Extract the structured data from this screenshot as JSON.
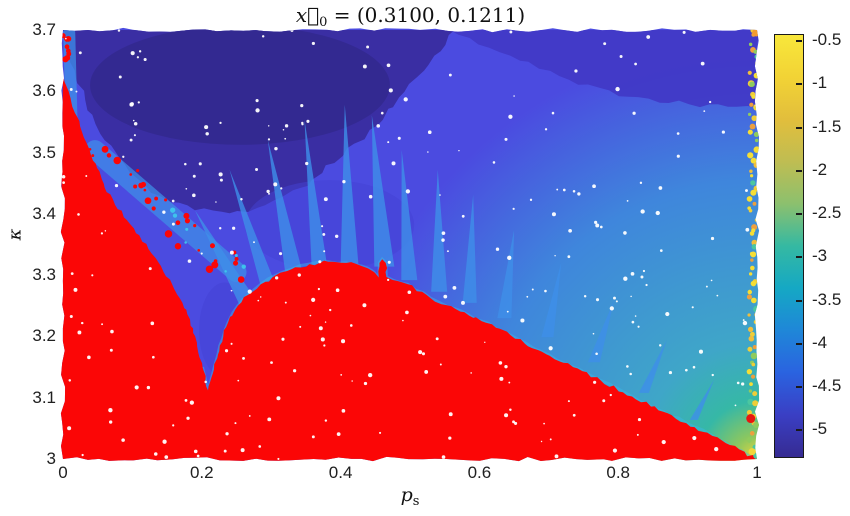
{
  "chart_data": {
    "type": "heatmap",
    "title": "x⃗₀ = (0.3100, 0.1211)",
    "title_parts": {
      "var": "x⃗",
      "sub": "0",
      "rest": " = (0.3100, 0.1211)"
    },
    "xlabel": "p_s",
    "xlabel_parts": {
      "base": "p",
      "sub": "s"
    },
    "ylabel": "κ",
    "xlim": [
      0,
      1
    ],
    "ylim": [
      3,
      3.7
    ],
    "x_ticks": [
      "0",
      "0.2",
      "0.4",
      "0.6",
      "0.8",
      "1"
    ],
    "x_tick_values": [
      0,
      0.2,
      0.4,
      0.6,
      0.8,
      1
    ],
    "y_ticks": [
      "3.7",
      "3.6",
      "3.5",
      "3.4",
      "3.3",
      "3.2",
      "3.1",
      "3"
    ],
    "y_tick_values": [
      3.7,
      3.6,
      3.5,
      3.4,
      3.3,
      3.2,
      3.1,
      3
    ],
    "grid": false,
    "legend": "colorbar-right",
    "colorbar": {
      "ticks": [
        "-0.5",
        "-1",
        "-1.5",
        "-2",
        "-2.5",
        "-3",
        "-3.5",
        "-4",
        "-4.5",
        "-5"
      ],
      "tick_values": [
        -0.5,
        -1,
        -1.5,
        -2,
        -2.5,
        -3,
        -3.5,
        -4,
        -4.5,
        -5
      ],
      "vmin": -5.33,
      "vmax": -0.43,
      "colormap": "parula",
      "gradient_stops_bottom_to_top": [
        [
          0.0,
          "#362B92"
        ],
        [
          0.1,
          "#3A3FC4"
        ],
        [
          0.2,
          "#2A63E0"
        ],
        [
          0.3,
          "#1F87D8"
        ],
        [
          0.4,
          "#15A8C4"
        ],
        [
          0.5,
          "#35B9A2"
        ],
        [
          0.6,
          "#8CC06E"
        ],
        [
          0.7,
          "#BFBD52"
        ],
        [
          0.8,
          "#E2BE3C"
        ],
        [
          0.9,
          "#F2D335"
        ],
        [
          1.0,
          "#F8E73B"
        ]
      ]
    },
    "colors": {
      "red": "#FB0606",
      "bowl": "#3A2EA3",
      "bowl_core": "#33288E",
      "band": "#4138C6",
      "blob": "#4442D4",
      "tongue": "#3E8FE9",
      "speckle_band": "#3F8FE8",
      "edge_streak": "#3E8FE8",
      "halo": "#3FB8E6",
      "cyan_dots": "#3ECBEC",
      "white_speckle": "#FFFFFF",
      "background_stops": [
        [
          0.0,
          "#E8D73C"
        ],
        [
          0.04,
          "#8CC75F"
        ],
        [
          0.1,
          "#36B8A6"
        ],
        [
          0.2,
          "#3FA6C8"
        ],
        [
          0.48,
          "#3F86DC"
        ],
        [
          0.72,
          "#4B4BE0"
        ],
        [
          1.0,
          "#4B4BE0"
        ]
      ],
      "right_strip_palette": [
        "#F6DE35",
        "#F0BE3C",
        "#ED9F3E",
        "#8FCB5E",
        "#F6DE35",
        "#4BC7A0",
        "#EFCE38",
        "#F6DE35"
      ]
    },
    "regions": {
      "red_boundary": [
        [
          0.0,
          3.627
        ],
        [
          0.008,
          3.6
        ],
        [
          0.017,
          3.565
        ],
        [
          0.027,
          3.535
        ],
        [
          0.038,
          3.505
        ],
        [
          0.049,
          3.475
        ],
        [
          0.06,
          3.443
        ],
        [
          0.075,
          3.415
        ],
        [
          0.092,
          3.39
        ],
        [
          0.11,
          3.365
        ],
        [
          0.128,
          3.335
        ],
        [
          0.145,
          3.305
        ],
        [
          0.16,
          3.278
        ],
        [
          0.172,
          3.255
        ],
        [
          0.183,
          3.228
        ],
        [
          0.193,
          3.19
        ],
        [
          0.201,
          3.15
        ],
        [
          0.209,
          3.112
        ],
        [
          0.216,
          3.14
        ],
        [
          0.226,
          3.185
        ],
        [
          0.238,
          3.223
        ],
        [
          0.252,
          3.25
        ],
        [
          0.267,
          3.268
        ],
        [
          0.285,
          3.285
        ],
        [
          0.307,
          3.3
        ],
        [
          0.33,
          3.31
        ],
        [
          0.355,
          3.318
        ],
        [
          0.382,
          3.322
        ],
        [
          0.408,
          3.32
        ],
        [
          0.43,
          3.315
        ],
        [
          0.447,
          3.306
        ],
        [
          0.455,
          3.296
        ],
        [
          0.456,
          3.32
        ],
        [
          0.46,
          3.326
        ],
        [
          0.465,
          3.32
        ],
        [
          0.466,
          3.297
        ],
        [
          0.475,
          3.292
        ],
        [
          0.497,
          3.285
        ],
        [
          0.53,
          3.262
        ],
        [
          0.565,
          3.245
        ],
        [
          0.603,
          3.225
        ],
        [
          0.645,
          3.202
        ],
        [
          0.69,
          3.175
        ],
        [
          0.735,
          3.15
        ],
        [
          0.775,
          3.128
        ],
        [
          0.82,
          3.102
        ],
        [
          0.865,
          3.077
        ],
        [
          0.91,
          3.052
        ],
        [
          0.955,
          3.026
        ],
        [
          1.0,
          3.0
        ]
      ],
      "navy_bowl": [
        [
          0.0,
          3.7
        ],
        [
          0.01,
          3.648
        ],
        [
          0.032,
          3.586
        ],
        [
          0.06,
          3.52
        ],
        [
          0.096,
          3.468
        ],
        [
          0.14,
          3.429
        ],
        [
          0.19,
          3.406
        ],
        [
          0.24,
          3.401
        ],
        [
          0.291,
          3.414
        ],
        [
          0.341,
          3.442
        ],
        [
          0.391,
          3.483
        ],
        [
          0.442,
          3.537
        ],
        [
          0.492,
          3.599
        ],
        [
          0.535,
          3.658
        ],
        [
          0.564,
          3.7
        ]
      ],
      "topright_band": [
        [
          0.557,
          3.7
        ],
        [
          0.586,
          3.687
        ],
        [
          0.629,
          3.664
        ],
        [
          0.715,
          3.625
        ],
        [
          0.801,
          3.592
        ],
        [
          0.902,
          3.579
        ],
        [
          1.0,
          3.573
        ],
        [
          1.0,
          3.7
        ]
      ],
      "bowl_core": {
        "c": [
          0.255,
          3.61
        ],
        "r": [
          0.216,
          0.139
        ]
      },
      "blobs": [
        {
          "c": [
            0.384,
            3.382
          ],
          "r": [
            0.122,
            0.073
          ]
        },
        {
          "c": [
            0.233,
            3.21
          ],
          "r": [
            0.037,
            0.078
          ]
        }
      ],
      "tongues": [
        {
          "base": [
            0.269,
            3.259
          ],
          "tip": [
            0.19,
            3.406
          ],
          "w": 10
        },
        {
          "base": [
            0.298,
            3.284
          ],
          "tip": [
            0.24,
            3.472
          ],
          "w": 8
        },
        {
          "base": [
            0.334,
            3.305
          ],
          "tip": [
            0.295,
            3.521
          ],
          "w": 9
        },
        {
          "base": [
            0.37,
            3.317
          ],
          "tip": [
            0.348,
            3.553
          ],
          "w": 8
        },
        {
          "base": [
            0.413,
            3.322
          ],
          "tip": [
            0.406,
            3.578
          ],
          "w": 9
        },
        {
          "base": [
            0.463,
            3.322
          ],
          "tip": [
            0.445,
            3.561
          ],
          "w": 10
        },
        {
          "base": [
            0.499,
            3.3
          ],
          "tip": [
            0.488,
            3.504
          ],
          "w": 8
        },
        {
          "base": [
            0.542,
            3.281
          ],
          "tip": [
            0.54,
            3.472
          ],
          "w": 8
        },
        {
          "base": [
            0.586,
            3.263
          ],
          "tip": [
            0.591,
            3.431
          ],
          "w": 7
        },
        {
          "base": [
            0.636,
            3.238
          ],
          "tip": [
            0.65,
            3.374
          ],
          "w": 7
        },
        {
          "base": [
            0.698,
            3.207
          ],
          "tip": [
            0.718,
            3.321
          ],
          "w": 6
        },
        {
          "base": [
            0.765,
            3.166
          ],
          "tip": [
            0.794,
            3.259
          ],
          "w": 6
        },
        {
          "base": [
            0.837,
            3.116
          ],
          "tip": [
            0.87,
            3.194
          ],
          "w": 5
        },
        {
          "base": [
            0.909,
            3.072
          ],
          "tip": [
            0.938,
            3.129
          ],
          "w": 4
        }
      ],
      "speckle_band": {
        "from": [
          0.046,
          3.504
        ],
        "to": [
          0.25,
          3.305
        ],
        "width": 20
      },
      "edge_streak": {
        "from": [
          0.009,
          3.695
        ],
        "to": [
          0.013,
          3.52
        ],
        "width": 12
      },
      "right_strip": {
        "p_range": [
          0.987,
          1.0
        ],
        "count": 78
      },
      "special_dots": [
        {
          "p": 0.999,
          "k": 3.696,
          "color": "#F49C2E",
          "r": 4
        },
        {
          "p": 0.991,
          "k": 3.066,
          "color": "#E8150F",
          "r": 4.5
        },
        {
          "p": 0.993,
          "k": 3.012,
          "color": "#F2D63A",
          "r": 3.5
        }
      ]
    },
    "speckles": {
      "white_count": 300,
      "red_band_count": 30,
      "cyan_count": 7,
      "left_edge_red_count": 9,
      "seed": 13
    },
    "description": "Scatter-style parameter-plane heatmap: solid red region in the lower-left below a jagged boundary (V-dip near p_s=0.21, hill peak near p_s=0.38, thin red spike at p_s=0.46, boundary falling to (1,3)); elsewhere parula-colored field: dark navy bowl in upper-left, darker band along top-right, light-blue tongues fanning up from the red boundary, teal-green-yellow gradient toward the bottom-right corner, speckled yellow/orange column at p_s=1, sparse white speckles throughout."
  }
}
